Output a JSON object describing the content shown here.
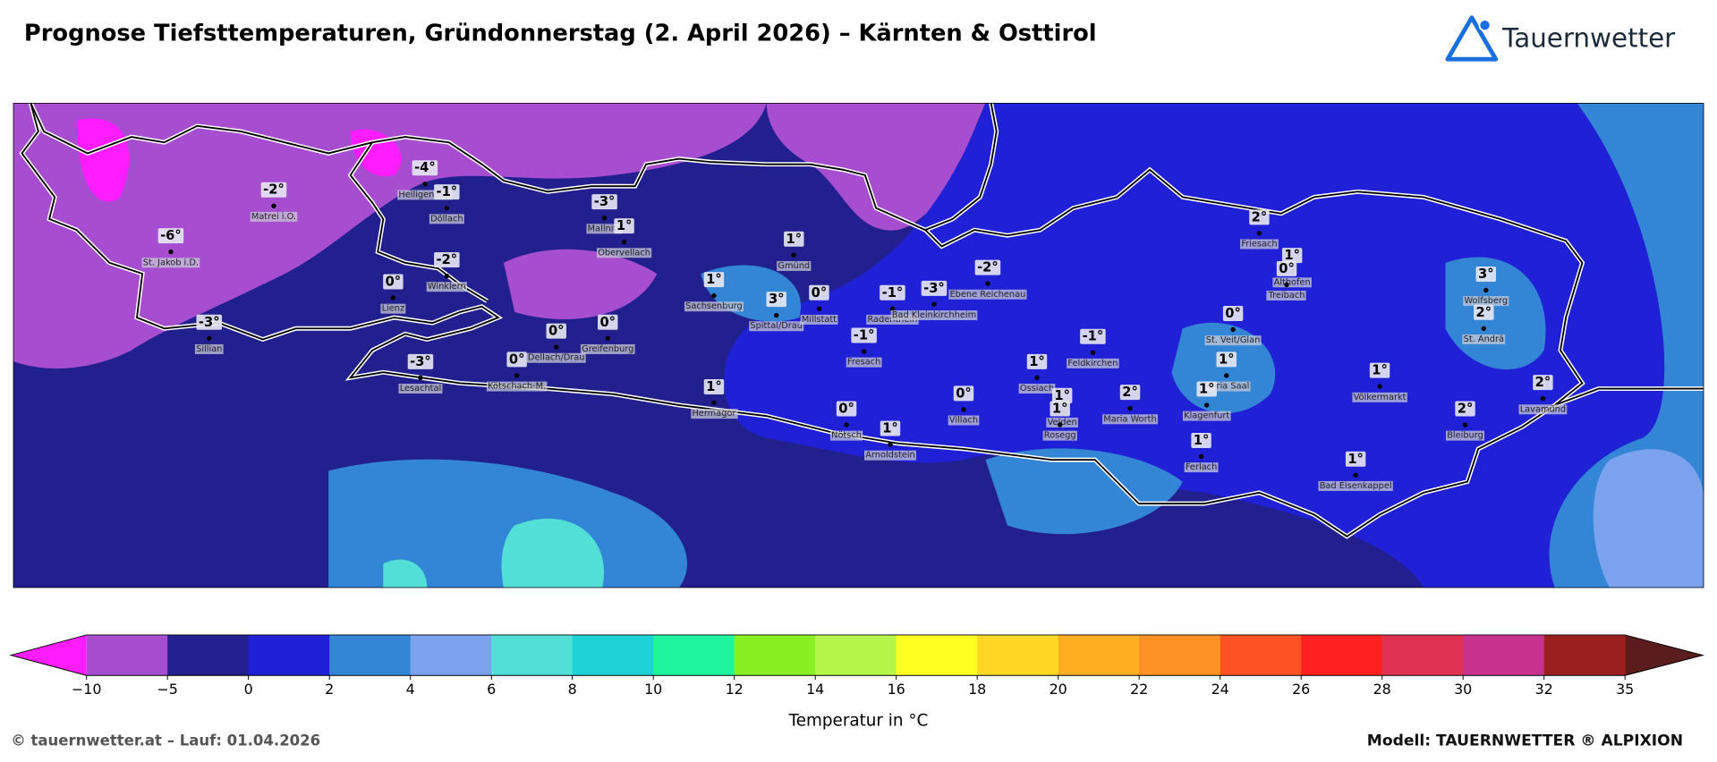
{
  "header": {
    "title": "Prognose Tiefsttemperaturen, Gründonnerstag (2. April 2026) – Kärnten & Osttirol",
    "logo": "Tauernwetter"
  },
  "map": {
    "stations": [
      {
        "name": "Matrei i.O.",
        "label": "-2°"
      },
      {
        "name": "St. Jakob i.D.",
        "label": "-6°"
      },
      {
        "name": "Heiligenblut",
        "label": "-4°"
      },
      {
        "name": "Döllach",
        "label": "-1°"
      },
      {
        "name": "Winklern",
        "label": "-2°"
      },
      {
        "name": "Lienz",
        "label": "0°"
      },
      {
        "name": "Sillian",
        "label": "-3°"
      },
      {
        "name": "Mallnitz",
        "label": "-3°"
      },
      {
        "name": "Obervellach",
        "label": "1°"
      },
      {
        "name": "Sachsenburg",
        "label": "1°"
      },
      {
        "name": "Gmünd",
        "label": "1°"
      },
      {
        "name": "Spittal/Drau",
        "label": "3°"
      },
      {
        "name": "Millstatt",
        "label": "0°"
      },
      {
        "name": "Radenthein",
        "label": "-1°"
      },
      {
        "name": "Bad Kleinkirchheim",
        "label": "-3°"
      },
      {
        "name": "Ebene Reichenau",
        "label": "-2°"
      },
      {
        "name": "Fresach",
        "label": "-1°"
      },
      {
        "name": "Dellach/Drau",
        "label": "0°"
      },
      {
        "name": "Greifenburg",
        "label": "0°"
      },
      {
        "name": "Kötschach-M.",
        "label": "0°"
      },
      {
        "name": "Lesachtal",
        "label": "-3°"
      },
      {
        "name": "Hermagor",
        "label": "1°"
      },
      {
        "name": "Nötsch",
        "label": "0°"
      },
      {
        "name": "Arnoldstein",
        "label": "1°"
      },
      {
        "name": "Villach",
        "label": "0°"
      },
      {
        "name": "Ossiach",
        "label": "1°"
      },
      {
        "name": "Velden",
        "label": "1°"
      },
      {
        "name": "Rosegg",
        "label": "1°"
      },
      {
        "name": "Feldkirchen",
        "label": "-1°"
      },
      {
        "name": "Maria Worth",
        "label": "2°"
      },
      {
        "name": "Friesach",
        "label": "2°"
      },
      {
        "name": "Althofen",
        "label": "1°"
      },
      {
        "name": "Treibach",
        "label": "0°"
      },
      {
        "name": "St. Veit/Glan",
        "label": "0°"
      },
      {
        "name": "Maria Saal",
        "label": "1°"
      },
      {
        "name": "Klagenfurt",
        "label": "1°"
      },
      {
        "name": "Ferlach",
        "label": "1°"
      },
      {
        "name": "Völkermarkt",
        "label": "1°"
      },
      {
        "name": "Bad Eisenkappel",
        "label": "1°"
      },
      {
        "name": "Wolfsberg",
        "label": "3°"
      },
      {
        "name": "St. Andrä",
        "label": "2°"
      },
      {
        "name": "Bleiburg",
        "label": "2°"
      },
      {
        "name": "Lavamünd",
        "label": "2°"
      }
    ]
  },
  "colorbar": {
    "boundaries": [
      {
        "value": -10,
        "label": "−10"
      },
      {
        "value": -5,
        "label": "−5"
      },
      0,
      2,
      4,
      6,
      8,
      10,
      12,
      14,
      16,
      18,
      20,
      22,
      24,
      26,
      28,
      30,
      32,
      35
    ],
    "colors": [
      "#a64dd0",
      "#22208f",
      "#2020d6",
      "#3386d6",
      "#7aa2ee",
      "#52e0d6",
      "#1ed2d8",
      "#1ef59e",
      "#88f022",
      "#b6f54a",
      "#ffff22",
      "#ffd826",
      "#ffae22",
      "#ff9222",
      "#ff5222",
      "#ff2020",
      "#e03252",
      "#c8328e",
      "#9a2020"
    ],
    "under_color": "#ff1cff",
    "over_color": "#5a1c1c",
    "label": "Temperatur in °C"
  },
  "footer": {
    "left": "© tauernwetter.at – Lauf: 01.04.2026",
    "right": "Modell: TAUERNWETTER ® ALPIXION"
  }
}
